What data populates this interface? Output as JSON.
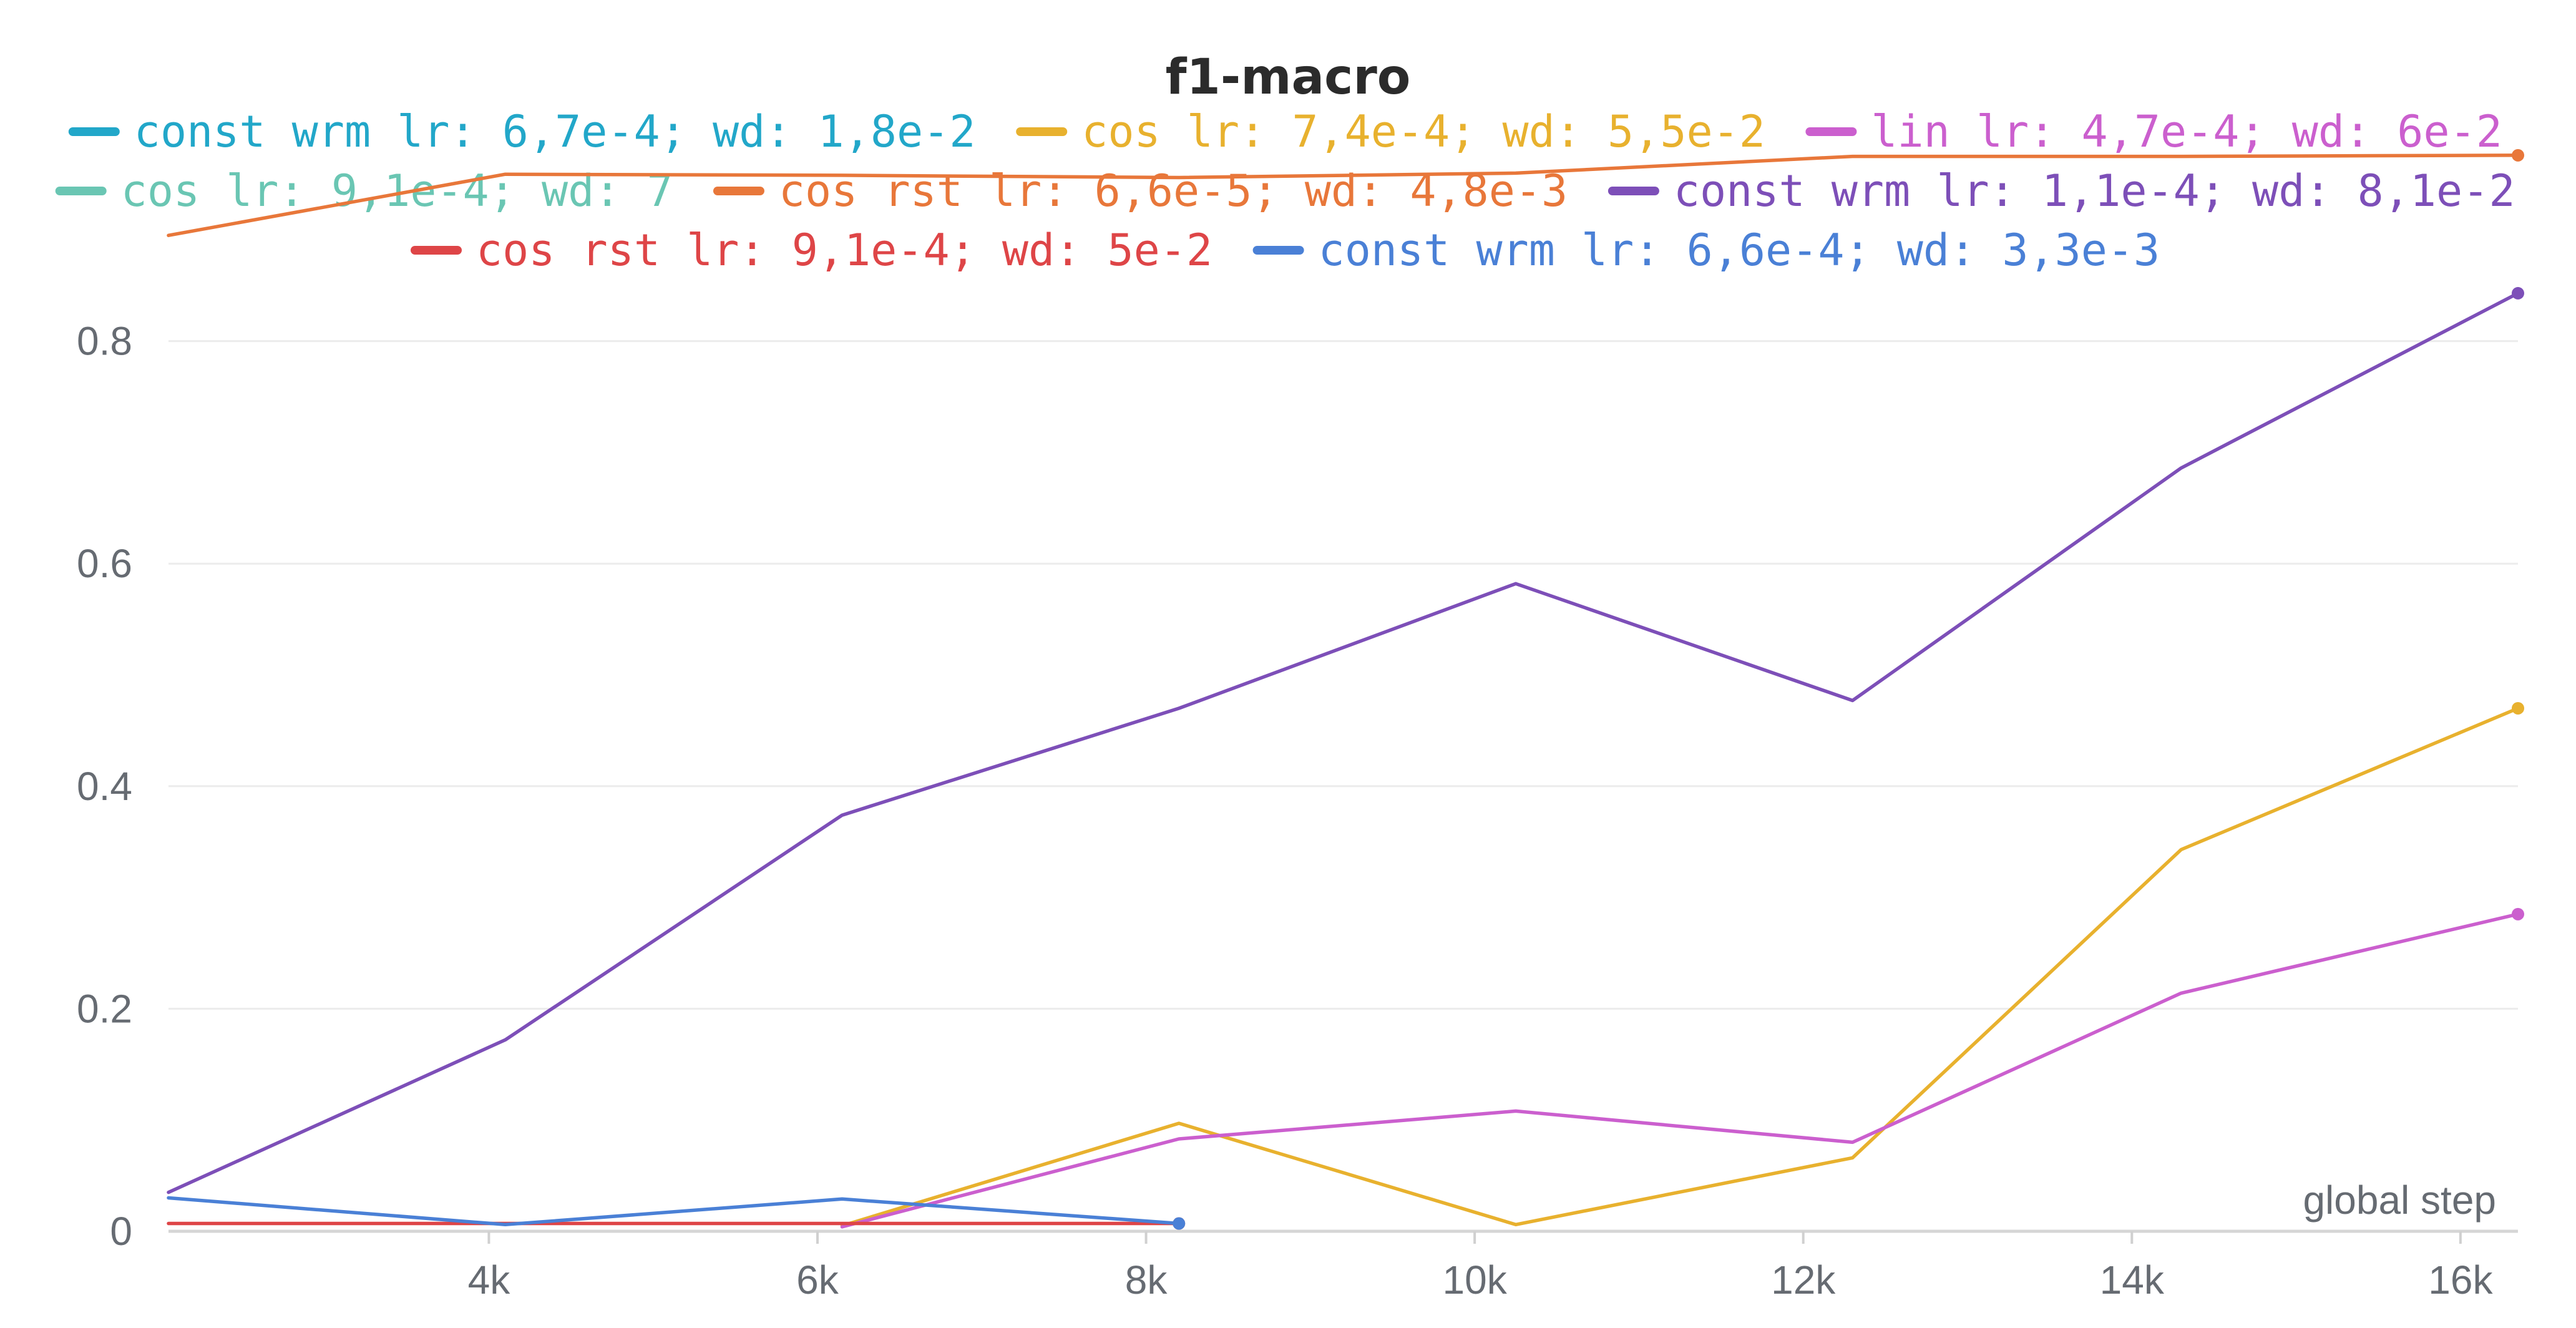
{
  "chart_data": {
    "type": "line",
    "title": "f1-macro",
    "xlabel": "global step",
    "ylabel": "",
    "xlim": [
      2050,
      16350
    ],
    "ylim": [
      0,
      1.0
    ],
    "x_ticks": [
      {
        "value": 4000,
        "label": "4k"
      },
      {
        "value": 6000,
        "label": "6k"
      },
      {
        "value": 8000,
        "label": "8k"
      },
      {
        "value": 10000,
        "label": "10k"
      },
      {
        "value": 12000,
        "label": "12k"
      },
      {
        "value": 14000,
        "label": "14k"
      },
      {
        "value": 16000,
        "label": "16k"
      }
    ],
    "y_ticks": [
      {
        "value": 0,
        "label": "0"
      },
      {
        "value": 0.2,
        "label": "0.2"
      },
      {
        "value": 0.4,
        "label": "0.4"
      },
      {
        "value": 0.6,
        "label": "0.6"
      },
      {
        "value": 0.8,
        "label": "0.8"
      }
    ],
    "grid": true,
    "legend_position": "top",
    "series": [
      {
        "name": "const wrm lr: 6,7e-4; wd: 1,8e-2",
        "color": "#22a7c9",
        "x": [],
        "y": []
      },
      {
        "name": "cos lr: 7,4e-4; wd: 5,5e-2",
        "color": "#e8b12e",
        "x": [
          6150,
          8200,
          10250,
          12300,
          14300,
          16350
        ],
        "y": [
          0.005,
          0.097,
          0.006,
          0.066,
          0.343,
          0.47
        ]
      },
      {
        "name": "lin lr: 4,7e-4; wd: 6e-2",
        "color": "#cb5fce",
        "x": [
          6150,
          8200,
          10250,
          12300,
          14300,
          16350
        ],
        "y": [
          0.004,
          0.083,
          0.108,
          0.08,
          0.214,
          0.285
        ]
      },
      {
        "name": "cos lr: 9,1e-4; wd: 7",
        "color": "#6ac6b3",
        "x": [],
        "y": []
      },
      {
        "name": "cos rst lr: 6,6e-5; wd: 4,8e-3",
        "color": "#e8773a",
        "x": [
          2050,
          4100,
          6150,
          8200,
          10250,
          12300,
          14300,
          16350
        ],
        "y": [
          0.895,
          0.95,
          0.949,
          0.947,
          0.951,
          0.966,
          0.966,
          0.967
        ]
      },
      {
        "name": "const wrm lr: 1,1e-4; wd: 8,1e-2",
        "color": "#7d4fb8",
        "x": [
          2050,
          4100,
          6150,
          8200,
          10250,
          12300,
          14300,
          16350
        ],
        "y": [
          0.035,
          0.172,
          0.374,
          0.47,
          0.582,
          0.477,
          0.686,
          0.843
        ]
      },
      {
        "name": "cos rst lr: 9,1e-4; wd: 5e-2",
        "color": "#de4547",
        "x": [
          2050,
          4100,
          6150,
          8200
        ],
        "y": [
          0.007,
          0.007,
          0.007,
          0.007
        ]
      },
      {
        "name": "const wrm lr: 6,6e-4; wd: 3,3e-3",
        "color": "#4a80d6",
        "x": [
          2050,
          4100,
          6150,
          8200
        ],
        "y": [
          0.03,
          0.006,
          0.029,
          0.007
        ]
      }
    ]
  }
}
